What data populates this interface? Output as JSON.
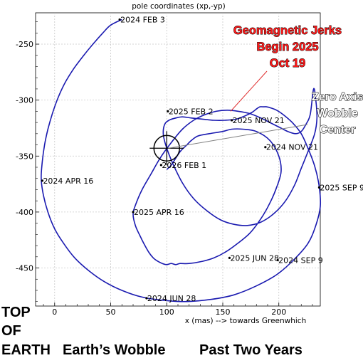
{
  "chart_data": {
    "type": "line",
    "title": "pole coordinates (xp,-yp)",
    "xlabel": "x (mas) --> towards Greenwhich",
    "ylabel": "",
    "xlim": [
      -17,
      237
    ],
    "ylim": [
      -484,
      -222
    ],
    "x_ticks": [
      0,
      50,
      100,
      150,
      200
    ],
    "y_ticks": [
      -250,
      -300,
      -350,
      -400,
      -450
    ],
    "grid": true,
    "series": [
      {
        "x": [
          60,
          50,
          43,
          35,
          26,
          17,
          9,
          3,
          -2,
          -6,
          -9,
          -11,
          -12,
          -10,
          -6,
          0,
          8,
          18,
          30,
          44,
          60,
          78,
          98,
          118,
          140,
          160,
          180,
          198,
          213,
          226,
          233,
          237,
          236,
          232,
          226,
          220,
          212,
          204,
          198,
          193,
          189,
          186,
          183,
          180,
          176,
          170,
          162,
          152,
          142,
          132,
          122,
          114,
          108,
          102,
          98,
          97,
          100,
          106,
          114,
          124,
          136,
          148,
          160,
          172,
          184,
          196,
          206,
          214,
          220,
          226,
          232,
          234,
          233,
          231,
          228,
          224,
          220,
          215,
          208,
          200,
          192,
          184,
          174,
          164,
          154,
          144,
          134,
          124,
          114,
          104,
          94,
          86,
          78,
          72,
          70,
          72,
          76,
          80,
          84,
          88,
          92,
          96,
          100,
          104,
          108,
          112,
          120,
          132,
          142,
          152,
          162,
          174,
          184,
          192,
          198,
          202,
          200,
          192,
          180,
          168,
          158,
          150,
          138,
          128,
          122,
          118,
          112,
          104,
          100
        ],
        "y": [
          -228,
          -233,
          -240,
          -249,
          -260,
          -272,
          -285,
          -298,
          -312,
          -326,
          -340,
          -355,
          -370,
          -385,
          -400,
          -415,
          -428,
          -441,
          -452,
          -462,
          -470,
          -476,
          -479,
          -480,
          -478,
          -474,
          -466,
          -456,
          -443,
          -428,
          -412,
          -395,
          -377,
          -359,
          -343,
          -330,
          -320,
          -313,
          -309,
          -307,
          -306,
          -306,
          -306,
          -308,
          -311,
          -314,
          -317,
          -318,
          -318,
          -317,
          -316,
          -315,
          -316,
          -318,
          -322,
          -331,
          -343,
          -358,
          -374,
          -388,
          -399,
          -407,
          -411,
          -412,
          -409,
          -401,
          -390,
          -376,
          -361,
          -346,
          -330,
          -316,
          -300,
          -290,
          -313,
          -322,
          -328,
          -330,
          -328,
          -324,
          -320,
          -316,
          -312,
          -310,
          -309,
          -310,
          -313,
          -318,
          -326,
          -338,
          -352,
          -366,
          -380,
          -394,
          -402,
          -412,
          -421,
          -429,
          -436,
          -441,
          -444,
          -446,
          -447,
          -446,
          -447,
          -446,
          -446,
          -444,
          -441,
          -436,
          -429,
          -419,
          -406,
          -392,
          -378,
          -364,
          -350,
          -336,
          -328,
          -326,
          -326,
          -328,
          -330,
          -332,
          -336,
          -340,
          -346,
          -358,
          -362
        ]
      }
    ],
    "point_labels": [
      {
        "text": "2024 FEB 3",
        "x": 58,
        "y": -228
      },
      {
        "text": "2024 APR 16",
        "x": -11,
        "y": -372
      },
      {
        "text": "2024 JUN 28",
        "x": 82,
        "y": -477
      },
      {
        "text": "2024 SEP 9",
        "x": 199,
        "y": -443
      },
      {
        "text": "2024 NOV 21",
        "x": 188,
        "y": -342
      },
      {
        "text": "2025 FEB 2",
        "x": 101,
        "y": -310
      },
      {
        "text": "2025 APR 16",
        "x": 70,
        "y": -400
      },
      {
        "text": "2025 JUN 28",
        "x": 156,
        "y": -441
      },
      {
        "text": "2025 SEP 9",
        "x": 236,
        "y": -378
      },
      {
        "text": "2025 NOV 21",
        "x": 158,
        "y": -318
      },
      {
        "text": "2026 FEB 1",
        "x": 95,
        "y": -358
      }
    ],
    "annotations": {
      "jerk_lines": [
        "Geomagnetic Jerks",
        "Begin 2025",
        "Oct 19"
      ],
      "zero_axis_lines": [
        "Zero Axis",
        "Wobble",
        "Center"
      ]
    }
  },
  "footer": {
    "top_line1": "TOP",
    "top_line2": "OF",
    "top_line3": "EARTH",
    "subtitle": "Earth’s Wobble",
    "subtitle2": "Past Two Years"
  },
  "colors": {
    "line": "#1a1ab0",
    "grid": "#c8c8c8",
    "jerk_text": "#ff1a1a",
    "pointer_red": "#e03030",
    "pointer_gray": "#808080"
  },
  "icons": {
    "wobble_center": "crosshair-icon"
  }
}
